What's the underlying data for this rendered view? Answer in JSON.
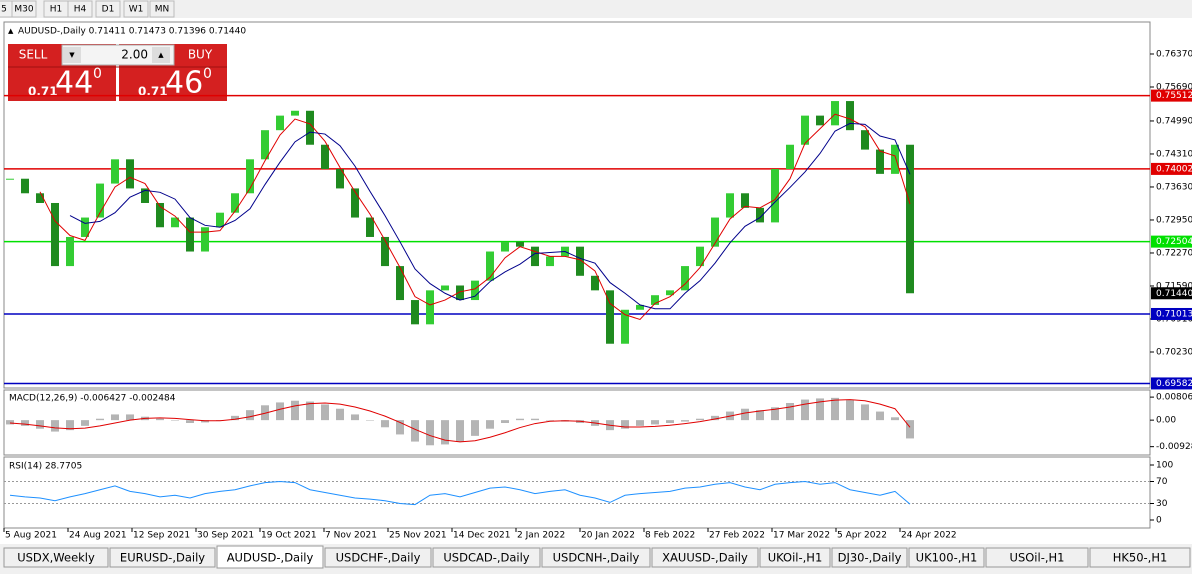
{
  "toolbar": {
    "timeframes": [
      "5",
      "M30",
      "H1",
      "H4",
      "D1",
      "W1",
      "MN"
    ]
  },
  "trade_panel": {
    "sell": "SELL",
    "buy": "BUY",
    "lot": "2.00",
    "sell_price": {
      "big": "0.71",
      "pips": "44",
      "point": "0"
    },
    "buy_price": {
      "big": "0.71",
      "pips": "46",
      "point": "0"
    }
  },
  "chart_data": {
    "type": "candlestick",
    "title": "AUDUSD-,Daily 0.71411 0.71473 0.71396 0.71440",
    "ylim": [
      0.69488,
      0.77029
    ],
    "yticks": [
      {
        "value": 0.7637,
        "label": "0.76370"
      },
      {
        "value": 0.7569,
        "label": "0.75690"
      },
      {
        "value": 0.7499,
        "label": "0.74990"
      },
      {
        "value": 0.7431,
        "label": "0.74310"
      },
      {
        "value": 0.7363,
        "label": "0.73630"
      },
      {
        "value": 0.7295,
        "label": "0.72950"
      },
      {
        "value": 0.7227,
        "label": "0.72270"
      },
      {
        "value": 0.7159,
        "label": "0.71590"
      },
      {
        "value": 0.7091,
        "label": "0.70910"
      },
      {
        "value": 0.7023,
        "label": "0.70230"
      }
    ],
    "date_labels": [
      "5 Aug 2021",
      "24 Aug 2021",
      "12 Sep 2021",
      "30 Sep 2021",
      "19 Oct 2021",
      "7 Nov 2021",
      "25 Nov 2021",
      "14 Dec 2021",
      "2 Jan 2022",
      "20 Jan 2022",
      "8 Feb 2022",
      "27 Feb 2022",
      "17 Mar 2022",
      "5 Apr 2022",
      "24 Apr 2022"
    ],
    "close": [
      0.738,
      0.735,
      0.733,
      0.72,
      0.726,
      0.73,
      0.737,
      0.742,
      0.736,
      0.733,
      0.728,
      0.73,
      0.723,
      0.728,
      0.731,
      0.735,
      0.742,
      0.748,
      0.751,
      0.752,
      0.745,
      0.74,
      0.736,
      0.73,
      0.726,
      0.72,
      0.713,
      0.708,
      0.715,
      0.716,
      0.713,
      0.717,
      0.723,
      0.725,
      0.724,
      0.72,
      0.722,
      0.724,
      0.718,
      0.715,
      0.704,
      0.711,
      0.712,
      0.714,
      0.715,
      0.72,
      0.724,
      0.73,
      0.735,
      0.732,
      0.729,
      0.74,
      0.745,
      0.751,
      0.749,
      0.754,
      0.748,
      0.744,
      0.739,
      0.745,
      0.7144
    ],
    "series": [
      {
        "color": "#e00000",
        "values": [
          null,
          null,
          0.7353,
          0.7293,
          0.7263,
          0.7253,
          0.731,
          0.7363,
          0.7383,
          0.737,
          0.7323,
          0.7303,
          0.727,
          0.727,
          0.7273,
          0.7313,
          0.736,
          0.7417,
          0.747,
          0.7503,
          0.7493,
          0.7457,
          0.7403,
          0.7353,
          0.7307,
          0.7253,
          0.7197,
          0.7137,
          0.712,
          0.713,
          0.7147,
          0.7153,
          0.7177,
          0.7217,
          0.724,
          0.723,
          0.722,
          0.722,
          0.7213,
          0.719,
          0.7123,
          0.71,
          0.709,
          0.7123,
          0.7137,
          0.7163,
          0.7197,
          0.7247,
          0.7297,
          0.7323,
          0.732,
          0.7337,
          0.738,
          0.7453,
          0.7483,
          0.7513,
          0.7503,
          0.7487,
          0.7437,
          0.7427,
          0.7328
        ]
      },
      {
        "color": "#00008b",
        "values": [
          null,
          null,
          null,
          null,
          0.7304,
          0.7288,
          0.7292,
          0.731,
          0.7342,
          0.7356,
          0.7352,
          0.7338,
          0.73,
          0.7284,
          0.728,
          0.7294,
          0.7318,
          0.7368,
          0.7414,
          0.7456,
          0.7476,
          0.7472,
          0.7448,
          0.7406,
          0.7354,
          0.7304,
          0.725,
          0.7194,
          0.7164,
          0.7144,
          0.713,
          0.7138,
          0.7168,
          0.7188,
          0.7204,
          0.7226,
          0.7228,
          0.723,
          0.7216,
          0.7206,
          0.7166,
          0.7144,
          0.712,
          0.7112,
          0.7112,
          0.7144,
          0.717,
          0.7206,
          0.7248,
          0.7282,
          0.73,
          0.7332,
          0.7362,
          0.7394,
          0.7432,
          0.7478,
          0.7494,
          0.7492,
          0.7468,
          0.746,
          0.7389
        ]
      }
    ],
    "levels": [
      {
        "value": 0.75512,
        "color": "#e00000"
      },
      {
        "value": 0.74002,
        "color": "#e00000"
      },
      {
        "value": 0.72504,
        "color": "#00e000"
      },
      {
        "value": 0.71013,
        "color": "#0000c0"
      },
      {
        "value": 0.69582,
        "color": "#0000c0"
      }
    ],
    "current_price": {
      "value": 0.7144,
      "label": "0.71440"
    },
    "macd": {
      "title": "MACD(12,26,9) -0.006427 -0.002484",
      "ylim": [
        -0.0122,
        0.0102
      ],
      "yticks": [
        {
          "value": 0.008061,
          "label": "0.008061"
        },
        {
          "value": 0,
          "label": "0.00"
        },
        {
          "value": -0.00928,
          "label": "-0.00928"
        }
      ],
      "histogram": [
        -0.0015,
        -0.002,
        -0.003,
        -0.004,
        -0.0035,
        -0.002,
        0.0005,
        0.002,
        0.002,
        0.0012,
        0.0005,
        0,
        -0.001,
        -0.0008,
        0,
        0.0015,
        0.0035,
        0.0052,
        0.0062,
        0.0068,
        0.0065,
        0.0055,
        0.004,
        0.002,
        0,
        -0.0025,
        -0.005,
        -0.0075,
        -0.0088,
        -0.0085,
        -0.0075,
        -0.0055,
        -0.003,
        -0.001,
        0.0005,
        0.0005,
        0,
        -0.0005,
        -0.001,
        -0.002,
        -0.0035,
        -0.003,
        -0.002,
        -0.0015,
        -0.001,
        -0.0005,
        0.0005,
        0.0015,
        0.003,
        0.004,
        0.0035,
        0.0045,
        0.006,
        0.0072,
        0.0076,
        0.0078,
        0.007,
        0.0055,
        0.003,
        0.001,
        -0.0064
      ],
      "signal": [
        -0.001,
        -0.0014,
        -0.002,
        -0.0027,
        -0.003,
        -0.0028,
        -0.002,
        -0.001,
        0,
        0.0006,
        0.0008,
        0.0006,
        0.0002,
        -0.0002,
        -0.0002,
        0.0003,
        0.0012,
        0.0024,
        0.0038,
        0.005,
        0.0058,
        0.006,
        0.0056,
        0.0046,
        0.0032,
        0.0014,
        -0.0008,
        -0.0032,
        -0.0054,
        -0.007,
        -0.0076,
        -0.0072,
        -0.006,
        -0.0044,
        -0.0026,
        -0.0012,
        -0.0004,
        -0.0002,
        -0.0004,
        -0.001,
        -0.0018,
        -0.0024,
        -0.0024,
        -0.0022,
        -0.0018,
        -0.0012,
        -0.0005,
        0.0004,
        0.0014,
        0.0025,
        0.0032,
        0.0038,
        0.0046,
        0.0056,
        0.0064,
        0.007,
        0.0072,
        0.0068,
        0.0056,
        0.004,
        -0.0025
      ]
    },
    "rsi": {
      "title": "RSI(14) 28.7705",
      "ylim": [
        0,
        100
      ],
      "yticks": [
        100,
        70,
        30,
        0
      ],
      "values": [
        45,
        42,
        40,
        35,
        42,
        48,
        55,
        62,
        52,
        48,
        42,
        45,
        40,
        48,
        52,
        55,
        62,
        68,
        70,
        68,
        55,
        50,
        45,
        40,
        38,
        35,
        30,
        28,
        45,
        48,
        42,
        50,
        58,
        60,
        55,
        48,
        52,
        55,
        45,
        40,
        32,
        45,
        48,
        50,
        52,
        58,
        60,
        65,
        68,
        60,
        55,
        65,
        68,
        70,
        65,
        68,
        55,
        50,
        45,
        52,
        28.7705
      ]
    }
  },
  "tabs": {
    "items": [
      "USDX,Weekly",
      "EURUSD-,Daily",
      "AUDUSD-,Daily",
      "USDCHF-,Daily",
      "USDCAD-,Daily",
      "USDCNH-,Daily",
      "XAUUSD-,Daily",
      "UKOil-,H1",
      "DJ30-,Daily",
      "UK100-,H1",
      "USOil-,H1",
      "HK50-,H1"
    ],
    "active": "AUDUSD-,Daily"
  }
}
